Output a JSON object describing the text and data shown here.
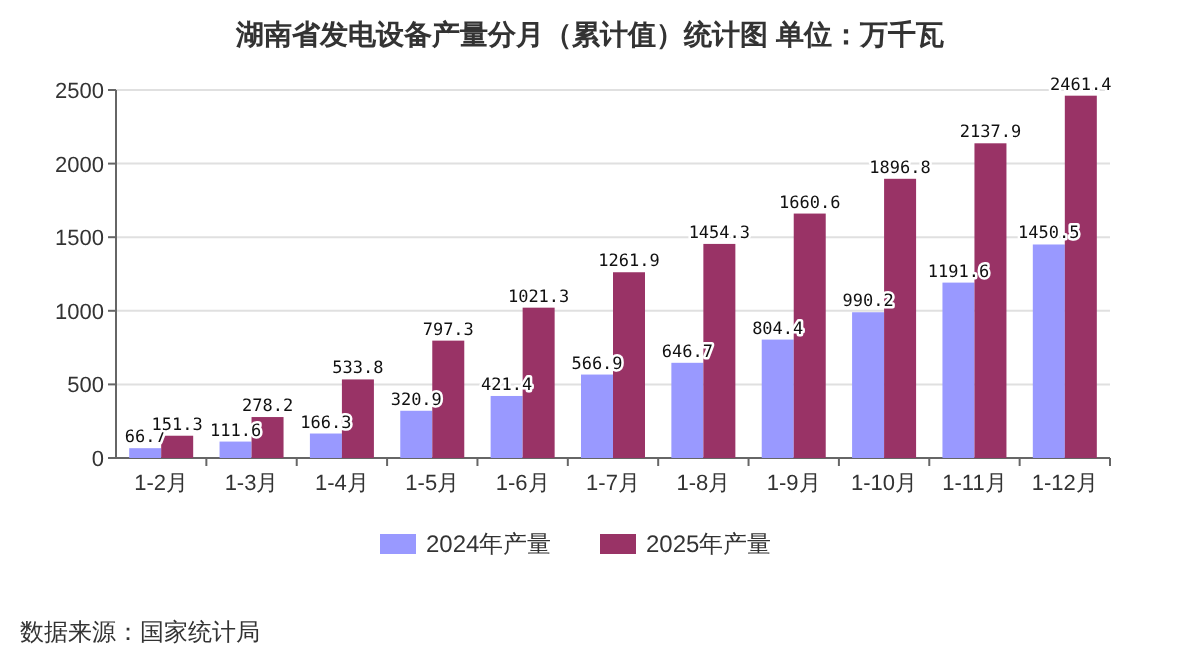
{
  "chart_data": {
    "type": "bar",
    "title": "湖南省发电设备产量分月（累计值）统计图 单位：万千瓦",
    "categories": [
      "1-2月",
      "1-3月",
      "1-4月",
      "1-5月",
      "1-6月",
      "1-7月",
      "1-8月",
      "1-9月",
      "1-10月",
      "1-11月",
      "1-12月"
    ],
    "series": [
      {
        "name": "2024年产量",
        "color": "#9999ff",
        "values": [
          66.7,
          111.6,
          166.3,
          320.9,
          421.4,
          566.9,
          646.7,
          804.4,
          990.2,
          1191.6,
          1450.5
        ]
      },
      {
        "name": "2025年产量",
        "color": "#993366",
        "values": [
          151.3,
          278.2,
          533.8,
          797.3,
          1021.3,
          1261.9,
          1454.3,
          1660.6,
          1896.8,
          2137.9,
          2461.4
        ]
      }
    ],
    "ylim": [
      0,
      2500
    ],
    "yticks": [
      0,
      500,
      1000,
      1500,
      2000,
      2500
    ],
    "grid": "y",
    "legend": "bottom",
    "data_labels": true,
    "annotations": [
      "数据来源：国家统计局"
    ]
  }
}
